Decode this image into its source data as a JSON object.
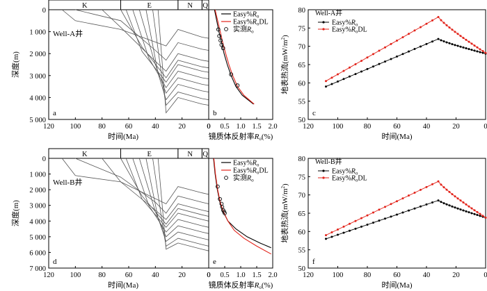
{
  "chart_data": [
    {
      "id": "a",
      "type": "line",
      "panel_letter": "a",
      "well_label": "Well-A井",
      "xlabel": "时间(Ma)",
      "ylabel": "深度(m)",
      "xlim": [
        120,
        0
      ],
      "ylim": [
        0,
        5000
      ],
      "xticks": [
        "120",
        "100",
        "80",
        "60",
        "40",
        "20",
        "0"
      ],
      "yticks": [
        "0",
        "1 000",
        "2 000",
        "3 000",
        "4 000",
        "5 000"
      ],
      "strata": [
        {
          "label": "K",
          "from": 120,
          "to": 66
        },
        {
          "label": "E",
          "from": 66,
          "to": 23
        },
        {
          "label": "N",
          "from": 23,
          "to": 5
        },
        {
          "label": "Q",
          "from": 5,
          "to": 0
        }
      ],
      "burial_lines": [
        [
          [
            110,
            0
          ],
          [
            100,
            500
          ],
          [
            66,
            900
          ],
          [
            32,
            1650
          ],
          [
            23,
            900
          ],
          [
            5,
            1250
          ],
          [
            0,
            1300
          ]
        ],
        [
          [
            100,
            0
          ],
          [
            66,
            500
          ],
          [
            40,
            1850
          ],
          [
            32,
            2300
          ],
          [
            23,
            1500
          ],
          [
            5,
            1800
          ],
          [
            0,
            1850
          ]
        ],
        [
          [
            80,
            0
          ],
          [
            66,
            800
          ],
          [
            40,
            2350
          ],
          [
            32,
            2800
          ],
          [
            23,
            2000
          ],
          [
            5,
            2300
          ],
          [
            0,
            2350
          ]
        ],
        [
          [
            66,
            0
          ],
          [
            50,
            1700
          ],
          [
            32,
            3100
          ],
          [
            23,
            2300
          ],
          [
            5,
            2600
          ],
          [
            0,
            2650
          ]
        ],
        [
          [
            62,
            0
          ],
          [
            50,
            1900
          ],
          [
            32,
            3300
          ],
          [
            23,
            2500
          ],
          [
            5,
            2800
          ],
          [
            0,
            2850
          ]
        ],
        [
          [
            57,
            0
          ],
          [
            45,
            2200
          ],
          [
            32,
            3550
          ],
          [
            23,
            2800
          ],
          [
            5,
            3100
          ],
          [
            0,
            3150
          ]
        ],
        [
          [
            52,
            0
          ],
          [
            40,
            2500
          ],
          [
            32,
            3800
          ],
          [
            23,
            3100
          ],
          [
            5,
            3400
          ],
          [
            0,
            3450
          ]
        ],
        [
          [
            47,
            0
          ],
          [
            38,
            2900
          ],
          [
            32,
            4100
          ],
          [
            23,
            3400
          ],
          [
            5,
            3700
          ],
          [
            0,
            3750
          ]
        ],
        [
          [
            42,
            0
          ],
          [
            34,
            3600
          ],
          [
            32,
            4350
          ],
          [
            23,
            3750
          ],
          [
            5,
            4050
          ],
          [
            0,
            4100
          ]
        ],
        [
          [
            38,
            0
          ],
          [
            32,
            4700
          ],
          [
            23,
            4000
          ],
          [
            5,
            4300
          ],
          [
            0,
            4350
          ]
        ]
      ]
    },
    {
      "id": "b",
      "type": "line",
      "panel_letter": "b",
      "xlabel": "镜质体反射率Ro(%)",
      "xlim": [
        0,
        2.0
      ],
      "ylim": [
        0,
        5000
      ],
      "xticks": [
        "0",
        "0.5",
        "1.0",
        "1.5",
        "2.0"
      ],
      "series": [
        {
          "name": "Easy%Ro",
          "color": "#000000",
          "points": [
            [
              0.18,
              0
            ],
            [
              0.25,
              500
            ],
            [
              0.32,
              1000
            ],
            [
              0.4,
              1500
            ],
            [
              0.48,
              2000
            ],
            [
              0.58,
              2500
            ],
            [
              0.7,
              3000
            ],
            [
              0.85,
              3500
            ],
            [
              1.05,
              3900
            ],
            [
              1.4,
              4300
            ]
          ]
        },
        {
          "name": "Easy%RoDL",
          "color": "#e2231a",
          "points": [
            [
              0.2,
              0
            ],
            [
              0.28,
              500
            ],
            [
              0.36,
              1000
            ],
            [
              0.44,
              1500
            ],
            [
              0.53,
              2000
            ],
            [
              0.63,
              2500
            ],
            [
              0.75,
              3000
            ],
            [
              0.9,
              3500
            ],
            [
              1.1,
              3900
            ],
            [
              1.42,
              4300
            ]
          ]
        }
      ],
      "measured_label": "实测Ro",
      "measured": [
        [
          0.3,
          900
        ],
        [
          0.33,
          1200
        ],
        [
          0.37,
          1400
        ],
        [
          0.4,
          1600
        ],
        [
          0.45,
          1750
        ],
        [
          0.7,
          2950
        ],
        [
          0.9,
          3450
        ]
      ]
    },
    {
      "id": "c",
      "type": "line",
      "panel_letter": "c",
      "well_label": "Well-A井",
      "xlabel": "时间(Ma)",
      "ylabel": "地表热流(mW/m²)",
      "xlim": [
        120,
        0
      ],
      "ylim": [
        50,
        80
      ],
      "xticks": [
        "120",
        "100",
        "80",
        "60",
        "40",
        "20",
        "0"
      ],
      "yticks": [
        "50",
        "55",
        "60",
        "65",
        "70",
        "75",
        "80"
      ],
      "series": [
        {
          "name": "Easy%Ro",
          "color": "#000000",
          "start": [
            108,
            59.0
          ],
          "peak": [
            32,
            72.0
          ],
          "end": [
            0,
            68.0
          ]
        },
        {
          "name": "Easy%RoDL",
          "color": "#e2231a",
          "start": [
            108,
            60.5
          ],
          "peak": [
            32,
            78.0
          ],
          "end": [
            0,
            68.2
          ]
        }
      ]
    },
    {
      "id": "d",
      "type": "line",
      "panel_letter": "d",
      "well_label": "Well-B井",
      "xlabel": "时间(Ma)",
      "ylabel": "深度(m)",
      "xlim": [
        120,
        0
      ],
      "ylim": [
        0,
        7000
      ],
      "xticks": [
        "120",
        "100",
        "80",
        "60",
        "40",
        "20",
        "0"
      ],
      "yticks": [
        "0",
        "1 000",
        "2 000",
        "3 000",
        "4 000",
        "5 000",
        "6 000",
        "7 000"
      ],
      "strata": [
        {
          "label": "K",
          "from": 120,
          "to": 66
        },
        {
          "label": "E",
          "from": 66,
          "to": 23
        },
        {
          "label": "N",
          "from": 23,
          "to": 5
        },
        {
          "label": "Q",
          "from": 5,
          "to": 0
        }
      ],
      "burial_lines": [
        [
          [
            110,
            0
          ],
          [
            100,
            1100
          ],
          [
            66,
            1500
          ],
          [
            32,
            2900
          ],
          [
            23,
            1800
          ],
          [
            5,
            2200
          ],
          [
            0,
            2300
          ]
        ],
        [
          [
            100,
            0
          ],
          [
            66,
            1200
          ],
          [
            40,
            2800
          ],
          [
            32,
            3500
          ],
          [
            23,
            2400
          ],
          [
            5,
            2800
          ],
          [
            0,
            2900
          ]
        ],
        [
          [
            80,
            0
          ],
          [
            66,
            1500
          ],
          [
            40,
            3300
          ],
          [
            32,
            3900
          ],
          [
            23,
            2900
          ],
          [
            5,
            3300
          ],
          [
            0,
            3400
          ]
        ],
        [
          [
            66,
            0
          ],
          [
            50,
            2400
          ],
          [
            32,
            4200
          ],
          [
            23,
            3200
          ],
          [
            5,
            3600
          ],
          [
            0,
            3700
          ]
        ],
        [
          [
            62,
            0
          ],
          [
            50,
            2600
          ],
          [
            32,
            4400
          ],
          [
            23,
            3500
          ],
          [
            5,
            3900
          ],
          [
            0,
            4000
          ]
        ],
        [
          [
            57,
            0
          ],
          [
            45,
            3000
          ],
          [
            32,
            4700
          ],
          [
            23,
            3900
          ],
          [
            5,
            4300
          ],
          [
            0,
            4400
          ]
        ],
        [
          [
            52,
            0
          ],
          [
            40,
            3400
          ],
          [
            32,
            5000
          ],
          [
            23,
            4300
          ],
          [
            5,
            4700
          ],
          [
            0,
            4800
          ]
        ],
        [
          [
            47,
            0
          ],
          [
            38,
            3800
          ],
          [
            32,
            5300
          ],
          [
            23,
            4700
          ],
          [
            5,
            5100
          ],
          [
            0,
            5200
          ]
        ],
        [
          [
            42,
            0
          ],
          [
            34,
            4600
          ],
          [
            32,
            5600
          ],
          [
            23,
            5100
          ],
          [
            5,
            5500
          ],
          [
            0,
            5600
          ]
        ],
        [
          [
            38,
            0
          ],
          [
            32,
            5800
          ],
          [
            23,
            5400
          ],
          [
            5,
            5800
          ],
          [
            0,
            5900
          ]
        ]
      ]
    },
    {
      "id": "e",
      "type": "line",
      "panel_letter": "e",
      "xlabel": "镜质体反射率Ro(%)",
      "xlim": [
        0,
        2.0
      ],
      "ylim": [
        0,
        7000
      ],
      "xticks": [
        "0",
        "0.5",
        "1.0",
        "1.5",
        "2.0"
      ],
      "series": [
        {
          "name": "Easy%Ro",
          "color": "#000000",
          "points": [
            [
              0.15,
              0
            ],
            [
              0.2,
              1000
            ],
            [
              0.27,
              2000
            ],
            [
              0.35,
              2800
            ],
            [
              0.45,
              3400
            ],
            [
              0.6,
              4000
            ],
            [
              0.85,
              4500
            ],
            [
              1.2,
              5000
            ],
            [
              1.6,
              5400
            ],
            [
              1.95,
              5700
            ]
          ]
        },
        {
          "name": "Easy%RoDL",
          "color": "#e2231a",
          "points": [
            [
              0.16,
              0
            ],
            [
              0.21,
              1000
            ],
            [
              0.28,
              2000
            ],
            [
              0.36,
              2800
            ],
            [
              0.46,
              3400
            ],
            [
              0.6,
              4000
            ],
            [
              0.8,
              4600
            ],
            [
              1.1,
              5100
            ],
            [
              1.5,
              5600
            ],
            [
              1.95,
              6100
            ]
          ]
        }
      ],
      "measured_label": "实测Ro",
      "measured": [
        [
          0.28,
          1800
        ],
        [
          0.35,
          2600
        ],
        [
          0.4,
          2900
        ],
        [
          0.42,
          3100
        ],
        [
          0.45,
          3300
        ],
        [
          0.48,
          3400
        ],
        [
          0.5,
          3500
        ]
      ]
    },
    {
      "id": "f",
      "type": "line",
      "panel_letter": "f",
      "well_label": "Well-B井",
      "xlabel": "时间(Ma)",
      "ylabel": "地表热流(mW/m²)",
      "xlim": [
        120,
        0
      ],
      "ylim": [
        50,
        80
      ],
      "xticks": [
        "120",
        "100",
        "80",
        "60",
        "40",
        "20",
        "0"
      ],
      "yticks": [
        "50",
        "55",
        "60",
        "65",
        "70",
        "75",
        "80"
      ],
      "series": [
        {
          "name": "Easy%Ro",
          "color": "#000000",
          "start": [
            108,
            58.0
          ],
          "peak": [
            32,
            68.5
          ],
          "end": [
            0,
            63.8
          ]
        },
        {
          "name": "Easy%RoDL",
          "color": "#e2231a",
          "start": [
            108,
            59.0
          ],
          "peak": [
            32,
            73.7
          ],
          "end": [
            0,
            63.8
          ]
        }
      ]
    }
  ]
}
